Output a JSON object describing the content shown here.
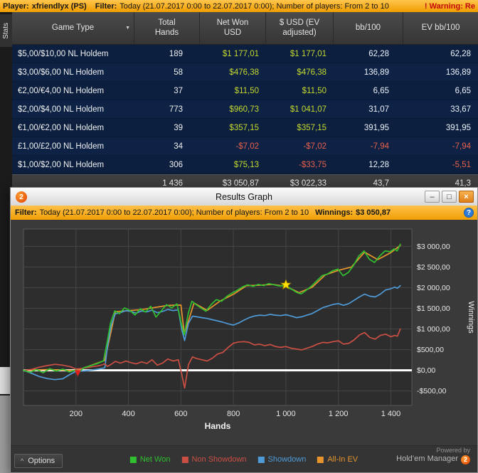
{
  "colors": {
    "accent_orange": "#f0a10b",
    "positive_money": "#c6d92f",
    "negative": "#e8604c",
    "row_bg": "#0d2142",
    "net_won_green": "#2fbf2f",
    "non_showdown_red": "#cc4f44",
    "showdown_blue": "#4f9bd8",
    "allin_ev_orange": "#e8952e"
  },
  "icons": {
    "column_dropdown": "▼",
    "help": "?",
    "options_arrow": "^"
  },
  "top_bar": {
    "player_label": "Player:",
    "player_value": "xfriendlyx (PS)",
    "filter_label": "Filter:",
    "filter_text": "Today (21.07.2017 0:00 to 22.07.2017 0:00); Number of players: From 2 to 10",
    "warning": "!  Warning: Re"
  },
  "sidebar": {
    "tab": "Stats"
  },
  "table": {
    "columns": [
      "Game Type",
      "Total Hands",
      "Net Won USD",
      "$ USD (EV adjusted)",
      "bb/100",
      "EV bb/100"
    ],
    "rows": [
      {
        "game": "$5,00/$10,00 NL Holdem",
        "hands": "189",
        "net": "$1 177,01",
        "ev": "$1 177,01",
        "bb": "62,28",
        "evbb": "62,28"
      },
      {
        "game": "$3,00/$6,00 NL Holdem",
        "hands": "58",
        "net": "$476,38",
        "ev": "$476,38",
        "bb": "136,89",
        "evbb": "136,89"
      },
      {
        "game": "€2,00/€4,00 NL Holdem",
        "hands": "37",
        "net": "$11,50",
        "ev": "$11,50",
        "bb": "6,65",
        "evbb": "6,65"
      },
      {
        "game": "$2,00/$4,00 NL Holdem",
        "hands": "773",
        "net": "$960,73",
        "ev": "$1 041,07",
        "bb": "31,07",
        "evbb": "33,67"
      },
      {
        "game": "€1,00/€2,00 NL Holdem",
        "hands": "39",
        "net": "$357,15",
        "ev": "$357,15",
        "bb": "391,95",
        "evbb": "391,95"
      },
      {
        "game": "£1,00/£2,00 NL Holdem",
        "hands": "34",
        "net": "-$7,02",
        "ev": "-$7,02",
        "bb": "-7,94",
        "evbb": "-7,94"
      },
      {
        "game": "$1,00/$2,00 NL Holdem",
        "hands": "306",
        "net": "$75,13",
        "ev": "-$33,75",
        "bb": "12,28",
        "evbb": "-5,51"
      }
    ],
    "summary": {
      "hands": "1 436",
      "net": "$3 050,87",
      "ev": "$3 022,33",
      "bb": "43,7",
      "evbb": "41,3"
    }
  },
  "popup": {
    "title": "Results Graph",
    "logo": "2",
    "window_buttons": {
      "minimize": "–",
      "maximize": "□",
      "close": "×"
    },
    "filter_bar": {
      "label": "Filter:",
      "text": "Today (21.07.2017 0:00 to 22.07.2017 0:00); Number of players: From 2 to 10",
      "winnings_label": "Winnings:",
      "winnings_value": "$3 050,87"
    },
    "options_button": "Options",
    "powered_by": {
      "line1": "Powered by",
      "line2": "Hold’em Manager",
      "logo": "2"
    }
  },
  "chart_data": {
    "type": "line",
    "title": "",
    "xlabel": "Hands",
    "ylabel": "Winnings",
    "x_range": [
      0,
      1480
    ],
    "y_range": [
      -850,
      3420
    ],
    "grid": true,
    "legend_position": "bottom",
    "x_ticks": [
      {
        "v": 200,
        "label": "200"
      },
      {
        "v": 400,
        "label": "400"
      },
      {
        "v": 600,
        "label": "600"
      },
      {
        "v": 800,
        "label": "800"
      },
      {
        "v": 1000,
        "label": "1 000"
      },
      {
        "v": 1200,
        "label": "1 200"
      },
      {
        "v": 1400,
        "label": "1 400"
      }
    ],
    "y_ticks": [
      {
        "v": 3000,
        "label": "$3 000,00"
      },
      {
        "v": 2500,
        "label": "$2 500,00"
      },
      {
        "v": 2000,
        "label": "$2 000,00"
      },
      {
        "v": 1500,
        "label": "$1 500,00"
      },
      {
        "v": 1000,
        "label": "$1 000,00"
      },
      {
        "v": 500,
        "label": "$500,00"
      },
      {
        "v": 0,
        "label": "$0,00"
      },
      {
        "v": -500,
        "label": "-$500,00"
      }
    ],
    "series": [
      {
        "name": "Net Won",
        "color": "#2fbf2f",
        "points": [
          [
            0,
            0
          ],
          [
            25,
            -50
          ],
          [
            50,
            20
          ],
          [
            75,
            -60
          ],
          [
            100,
            40
          ],
          [
            125,
            -20
          ],
          [
            150,
            30
          ],
          [
            175,
            -40
          ],
          [
            200,
            10
          ],
          [
            210,
            -50
          ],
          [
            230,
            60
          ],
          [
            255,
            110
          ],
          [
            280,
            160
          ],
          [
            305,
            230
          ],
          [
            318,
            650
          ],
          [
            332,
            1150
          ],
          [
            348,
            1440
          ],
          [
            365,
            1370
          ],
          [
            385,
            1510
          ],
          [
            405,
            1450
          ],
          [
            425,
            1340
          ],
          [
            445,
            1490
          ],
          [
            465,
            1410
          ],
          [
            485,
            1550
          ],
          [
            505,
            1290
          ],
          [
            525,
            1440
          ],
          [
            545,
            1590
          ],
          [
            565,
            1510
          ],
          [
            585,
            1610
          ],
          [
            602,
            1120
          ],
          [
            613,
            860
          ],
          [
            628,
            1380
          ],
          [
            642,
            1670
          ],
          [
            658,
            1590
          ],
          [
            676,
            1510
          ],
          [
            695,
            1430
          ],
          [
            715,
            1590
          ],
          [
            735,
            1710
          ],
          [
            755,
            1670
          ],
          [
            775,
            1790
          ],
          [
            795,
            1870
          ],
          [
            815,
            1940
          ],
          [
            835,
            2020
          ],
          [
            855,
            2070
          ],
          [
            875,
            2030
          ],
          [
            895,
            2080
          ],
          [
            915,
            2050
          ],
          [
            935,
            2100
          ],
          [
            955,
            2070
          ],
          [
            975,
            2040
          ],
          [
            1000,
            2060
          ],
          [
            1020,
            1970
          ],
          [
            1040,
            1890
          ],
          [
            1058,
            1850
          ],
          [
            1078,
            1940
          ],
          [
            1098,
            2040
          ],
          [
            1118,
            2170
          ],
          [
            1138,
            2290
          ],
          [
            1158,
            2330
          ],
          [
            1178,
            2410
          ],
          [
            1198,
            2450
          ],
          [
            1218,
            2290
          ],
          [
            1238,
            2370
          ],
          [
            1258,
            2540
          ],
          [
            1278,
            2770
          ],
          [
            1298,
            2890
          ],
          [
            1318,
            2690
          ],
          [
            1338,
            2610
          ],
          [
            1358,
            2770
          ],
          [
            1378,
            2890
          ],
          [
            1398,
            2870
          ],
          [
            1412,
            2940
          ],
          [
            1424,
            2890
          ],
          [
            1436,
            3051
          ]
        ]
      },
      {
        "name": "Non Showdown",
        "color": "#cc4f44",
        "points": [
          [
            0,
            0
          ],
          [
            30,
            20
          ],
          [
            60,
            75
          ],
          [
            90,
            115
          ],
          [
            120,
            145
          ],
          [
            150,
            125
          ],
          [
            180,
            85
          ],
          [
            200,
            30
          ],
          [
            230,
            50
          ],
          [
            260,
            85
          ],
          [
            290,
            115
          ],
          [
            310,
            155
          ],
          [
            320,
            95
          ],
          [
            334,
            145
          ],
          [
            350,
            215
          ],
          [
            370,
            175
          ],
          [
            390,
            225
          ],
          [
            410,
            185
          ],
          [
            430,
            155
          ],
          [
            450,
            205
          ],
          [
            470,
            165
          ],
          [
            490,
            255
          ],
          [
            510,
            125
          ],
          [
            530,
            175
          ],
          [
            550,
            275
          ],
          [
            570,
            225
          ],
          [
            590,
            255
          ],
          [
            603,
            -90
          ],
          [
            614,
            -430
          ],
          [
            629,
            140
          ],
          [
            644,
            325
          ],
          [
            660,
            285
          ],
          [
            680,
            255
          ],
          [
            700,
            225
          ],
          [
            720,
            295
          ],
          [
            740,
            395
          ],
          [
            760,
            435
          ],
          [
            780,
            555
          ],
          [
            800,
            655
          ],
          [
            820,
            685
          ],
          [
            840,
            695
          ],
          [
            860,
            675
          ],
          [
            880,
            615
          ],
          [
            900,
            635
          ],
          [
            920,
            595
          ],
          [
            940,
            625
          ],
          [
            960,
            575
          ],
          [
            980,
            555
          ],
          [
            1000,
            575
          ],
          [
            1020,
            535
          ],
          [
            1040,
            515
          ],
          [
            1060,
            495
          ],
          [
            1080,
            535
          ],
          [
            1100,
            575
          ],
          [
            1120,
            635
          ],
          [
            1140,
            675
          ],
          [
            1160,
            665
          ],
          [
            1180,
            695
          ],
          [
            1200,
            715
          ],
          [
            1220,
            635
          ],
          [
            1240,
            655
          ],
          [
            1260,
            735
          ],
          [
            1280,
            855
          ],
          [
            1300,
            915
          ],
          [
            1320,
            795
          ],
          [
            1340,
            755
          ],
          [
            1360,
            845
          ],
          [
            1380,
            875
          ],
          [
            1400,
            815
          ],
          [
            1415,
            845
          ],
          [
            1425,
            825
          ],
          [
            1436,
            1001
          ]
        ]
      },
      {
        "name": "Showdown",
        "color": "#4f9bd8",
        "points": [
          [
            0,
            0
          ],
          [
            30,
            -70
          ],
          [
            60,
            -150
          ],
          [
            90,
            -200
          ],
          [
            120,
            -225
          ],
          [
            150,
            -205
          ],
          [
            180,
            -90
          ],
          [
            200,
            -25
          ],
          [
            230,
            -15
          ],
          [
            260,
            5
          ],
          [
            290,
            35
          ],
          [
            310,
            60
          ],
          [
            320,
            580
          ],
          [
            334,
            1080
          ],
          [
            350,
            1370
          ],
          [
            370,
            1395
          ],
          [
            390,
            1445
          ],
          [
            410,
            1425
          ],
          [
            430,
            1385
          ],
          [
            450,
            1435
          ],
          [
            470,
            1415
          ],
          [
            490,
            1455
          ],
          [
            510,
            1395
          ],
          [
            530,
            1425
          ],
          [
            550,
            1475
          ],
          [
            570,
            1445
          ],
          [
            590,
            1465
          ],
          [
            603,
            990
          ],
          [
            614,
            720
          ],
          [
            629,
            1140
          ],
          [
            644,
            1310
          ],
          [
            660,
            1295
          ],
          [
            680,
            1275
          ],
          [
            700,
            1255
          ],
          [
            720,
            1225
          ],
          [
            740,
            1195
          ],
          [
            760,
            1165
          ],
          [
            780,
            1125
          ],
          [
            800,
            1095
          ],
          [
            820,
            1145
          ],
          [
            840,
            1215
          ],
          [
            860,
            1275
          ],
          [
            880,
            1315
          ],
          [
            900,
            1335
          ],
          [
            920,
            1325
          ],
          [
            940,
            1355
          ],
          [
            960,
            1335
          ],
          [
            980,
            1325
          ],
          [
            1000,
            1345
          ],
          [
            1020,
            1315
          ],
          [
            1040,
            1275
          ],
          [
            1060,
            1295
          ],
          [
            1080,
            1335
          ],
          [
            1100,
            1375
          ],
          [
            1120,
            1445
          ],
          [
            1140,
            1515
          ],
          [
            1160,
            1555
          ],
          [
            1180,
            1595
          ],
          [
            1200,
            1615
          ],
          [
            1220,
            1575
          ],
          [
            1240,
            1615
          ],
          [
            1260,
            1695
          ],
          [
            1280,
            1775
          ],
          [
            1300,
            1845
          ],
          [
            1320,
            1795
          ],
          [
            1340,
            1775
          ],
          [
            1360,
            1845
          ],
          [
            1380,
            1945
          ],
          [
            1400,
            1975
          ],
          [
            1415,
            2015
          ],
          [
            1425,
            1985
          ],
          [
            1436,
            2050
          ]
        ]
      },
      {
        "name": "All-In EV",
        "color": "#e8952e",
        "points": [
          [
            0,
            0
          ],
          [
            100,
            20
          ],
          [
            200,
            -10
          ],
          [
            310,
            240
          ],
          [
            350,
            1420
          ],
          [
            450,
            1470
          ],
          [
            550,
            1570
          ],
          [
            600,
            1580
          ],
          [
            613,
            880
          ],
          [
            650,
            1630
          ],
          [
            700,
            1450
          ],
          [
            750,
            1680
          ],
          [
            800,
            1840
          ],
          [
            850,
            2050
          ],
          [
            900,
            2060
          ],
          [
            950,
            2080
          ],
          [
            1000,
            2030
          ],
          [
            1050,
            1880
          ],
          [
            1100,
            2010
          ],
          [
            1150,
            2310
          ],
          [
            1200,
            2420
          ],
          [
            1250,
            2500
          ],
          [
            1300,
            2860
          ],
          [
            1350,
            2680
          ],
          [
            1400,
            2850
          ],
          [
            1436,
            3022
          ]
        ]
      }
    ],
    "markers": [
      {
        "type": "star",
        "x": 1000,
        "y": 2070,
        "color": "#ffe000"
      },
      {
        "type": "arrow-down",
        "x": 207,
        "y": -150,
        "color": "#dd2222"
      }
    ]
  }
}
